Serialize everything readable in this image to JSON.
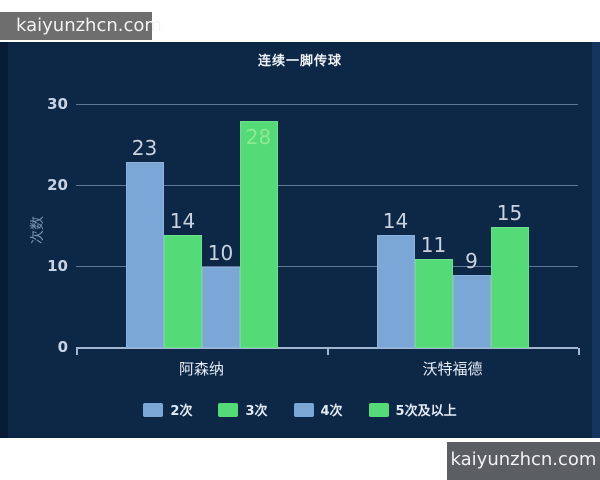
{
  "watermarks": {
    "top": "kaiyunzhcn.com",
    "bottom": "kaiyunzhcn.com"
  },
  "chart_data": {
    "type": "bar",
    "title": "连续一脚传球",
    "ylabel": "次数",
    "xlabel": "",
    "categories": [
      "阿森纳",
      "沃特福德"
    ],
    "series": [
      {
        "name": "2次",
        "color": "#7ba7d7",
        "values": [
          23,
          14
        ]
      },
      {
        "name": "3次",
        "color": "#54da76",
        "values": [
          14,
          11
        ]
      },
      {
        "name": "4次",
        "color": "#7ba7d7",
        "values": [
          10,
          9
        ]
      },
      {
        "name": "5次及以上",
        "color": "#54da76",
        "values": [
          28,
          15
        ]
      }
    ],
    "ylim": [
      0,
      30
    ],
    "yticks": [
      0,
      10,
      20,
      30
    ],
    "grid": true,
    "legend_position": "bottom",
    "value_labels": true
  },
  "colors": {
    "panel_bg": "#0d2746",
    "bar_blue": "#7ba7d7",
    "bar_green": "#54da76",
    "gridline": "#5e7699",
    "axis_line": "#a3b6d2",
    "watermark_bg_top": "#6e6e6e",
    "watermark_bg_bottom": "#5b5e62"
  }
}
